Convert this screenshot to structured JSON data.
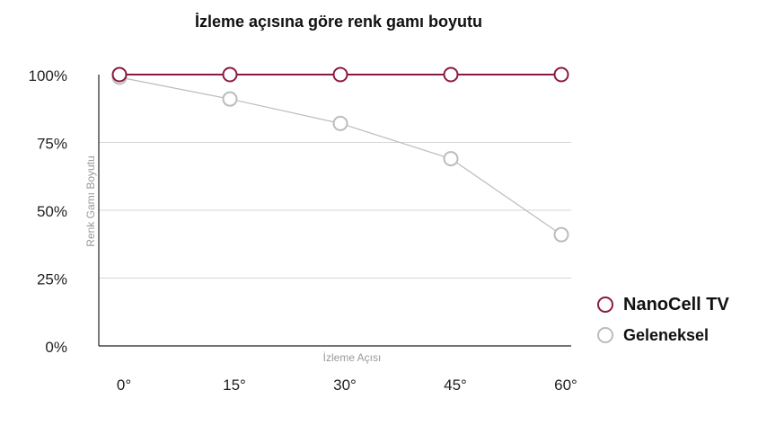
{
  "chart_data": {
    "type": "line",
    "title": "İzleme açısına göre renk gamı boyutu",
    "xlabel": "İzleme Açısı",
    "ylabel": "Renk Gamı Boyutu",
    "categories": [
      "0°",
      "15°",
      "30°",
      "45°",
      "60°"
    ],
    "y_ticks": [
      "0%",
      "25%",
      "50%",
      "75%",
      "100%"
    ],
    "ylim": [
      0,
      100
    ],
    "grid": true,
    "legend_position": "right",
    "series": [
      {
        "name": "NanoCell TV",
        "color": "#8b1a42",
        "values": [
          100,
          100,
          100,
          100,
          100
        ]
      },
      {
        "name": "Geleneksel",
        "color": "#bcbcbc",
        "values": [
          99,
          91,
          82,
          69,
          41
        ]
      }
    ]
  }
}
